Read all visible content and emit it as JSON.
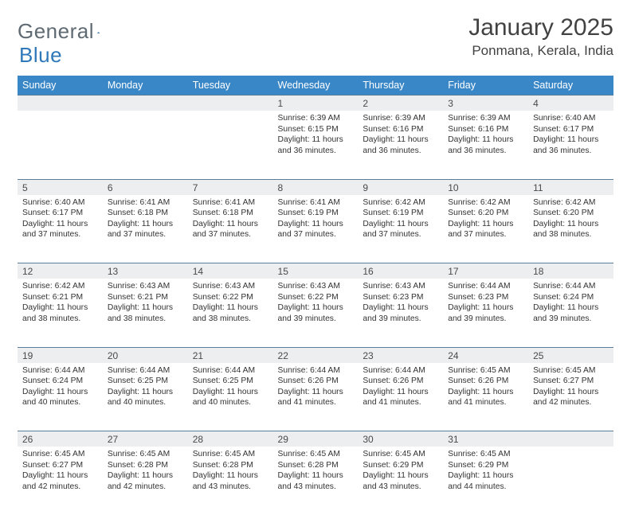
{
  "logo": {
    "word1": "General",
    "word2": "Blue"
  },
  "title": "January 2025",
  "location": "Ponmana, Kerala, India",
  "colors": {
    "header_bg": "#3a87c7",
    "header_fg": "#ffffff",
    "daynum_bg": "#eceeef",
    "cell_border": "#5a7d9a",
    "logo_gray": "#5f6a72",
    "logo_blue": "#2f78b9",
    "text": "#333333",
    "title_color": "#424242",
    "bg": "#ffffff"
  },
  "day_headers": [
    "Sunday",
    "Monday",
    "Tuesday",
    "Wednesday",
    "Thursday",
    "Friday",
    "Saturday"
  ],
  "first_weekday_index": 3,
  "days": [
    {
      "n": 1,
      "sr": "6:39 AM",
      "ss": "6:15 PM",
      "dl": "11 hours and 36 minutes."
    },
    {
      "n": 2,
      "sr": "6:39 AM",
      "ss": "6:16 PM",
      "dl": "11 hours and 36 minutes."
    },
    {
      "n": 3,
      "sr": "6:39 AM",
      "ss": "6:16 PM",
      "dl": "11 hours and 36 minutes."
    },
    {
      "n": 4,
      "sr": "6:40 AM",
      "ss": "6:17 PM",
      "dl": "11 hours and 36 minutes."
    },
    {
      "n": 5,
      "sr": "6:40 AM",
      "ss": "6:17 PM",
      "dl": "11 hours and 37 minutes."
    },
    {
      "n": 6,
      "sr": "6:41 AM",
      "ss": "6:18 PM",
      "dl": "11 hours and 37 minutes."
    },
    {
      "n": 7,
      "sr": "6:41 AM",
      "ss": "6:18 PM",
      "dl": "11 hours and 37 minutes."
    },
    {
      "n": 8,
      "sr": "6:41 AM",
      "ss": "6:19 PM",
      "dl": "11 hours and 37 minutes."
    },
    {
      "n": 9,
      "sr": "6:42 AM",
      "ss": "6:19 PM",
      "dl": "11 hours and 37 minutes."
    },
    {
      "n": 10,
      "sr": "6:42 AM",
      "ss": "6:20 PM",
      "dl": "11 hours and 37 minutes."
    },
    {
      "n": 11,
      "sr": "6:42 AM",
      "ss": "6:20 PM",
      "dl": "11 hours and 38 minutes."
    },
    {
      "n": 12,
      "sr": "6:42 AM",
      "ss": "6:21 PM",
      "dl": "11 hours and 38 minutes."
    },
    {
      "n": 13,
      "sr": "6:43 AM",
      "ss": "6:21 PM",
      "dl": "11 hours and 38 minutes."
    },
    {
      "n": 14,
      "sr": "6:43 AM",
      "ss": "6:22 PM",
      "dl": "11 hours and 38 minutes."
    },
    {
      "n": 15,
      "sr": "6:43 AM",
      "ss": "6:22 PM",
      "dl": "11 hours and 39 minutes."
    },
    {
      "n": 16,
      "sr": "6:43 AM",
      "ss": "6:23 PM",
      "dl": "11 hours and 39 minutes."
    },
    {
      "n": 17,
      "sr": "6:44 AM",
      "ss": "6:23 PM",
      "dl": "11 hours and 39 minutes."
    },
    {
      "n": 18,
      "sr": "6:44 AM",
      "ss": "6:24 PM",
      "dl": "11 hours and 39 minutes."
    },
    {
      "n": 19,
      "sr": "6:44 AM",
      "ss": "6:24 PM",
      "dl": "11 hours and 40 minutes."
    },
    {
      "n": 20,
      "sr": "6:44 AM",
      "ss": "6:25 PM",
      "dl": "11 hours and 40 minutes."
    },
    {
      "n": 21,
      "sr": "6:44 AM",
      "ss": "6:25 PM",
      "dl": "11 hours and 40 minutes."
    },
    {
      "n": 22,
      "sr": "6:44 AM",
      "ss": "6:26 PM",
      "dl": "11 hours and 41 minutes."
    },
    {
      "n": 23,
      "sr": "6:44 AM",
      "ss": "6:26 PM",
      "dl": "11 hours and 41 minutes."
    },
    {
      "n": 24,
      "sr": "6:45 AM",
      "ss": "6:26 PM",
      "dl": "11 hours and 41 minutes."
    },
    {
      "n": 25,
      "sr": "6:45 AM",
      "ss": "6:27 PM",
      "dl": "11 hours and 42 minutes."
    },
    {
      "n": 26,
      "sr": "6:45 AM",
      "ss": "6:27 PM",
      "dl": "11 hours and 42 minutes."
    },
    {
      "n": 27,
      "sr": "6:45 AM",
      "ss": "6:28 PM",
      "dl": "11 hours and 42 minutes."
    },
    {
      "n": 28,
      "sr": "6:45 AM",
      "ss": "6:28 PM",
      "dl": "11 hours and 43 minutes."
    },
    {
      "n": 29,
      "sr": "6:45 AM",
      "ss": "6:28 PM",
      "dl": "11 hours and 43 minutes."
    },
    {
      "n": 30,
      "sr": "6:45 AM",
      "ss": "6:29 PM",
      "dl": "11 hours and 43 minutes."
    },
    {
      "n": 31,
      "sr": "6:45 AM",
      "ss": "6:29 PM",
      "dl": "11 hours and 44 minutes."
    }
  ],
  "labels": {
    "sunrise": "Sunrise:",
    "sunset": "Sunset:",
    "daylight": "Daylight:"
  }
}
